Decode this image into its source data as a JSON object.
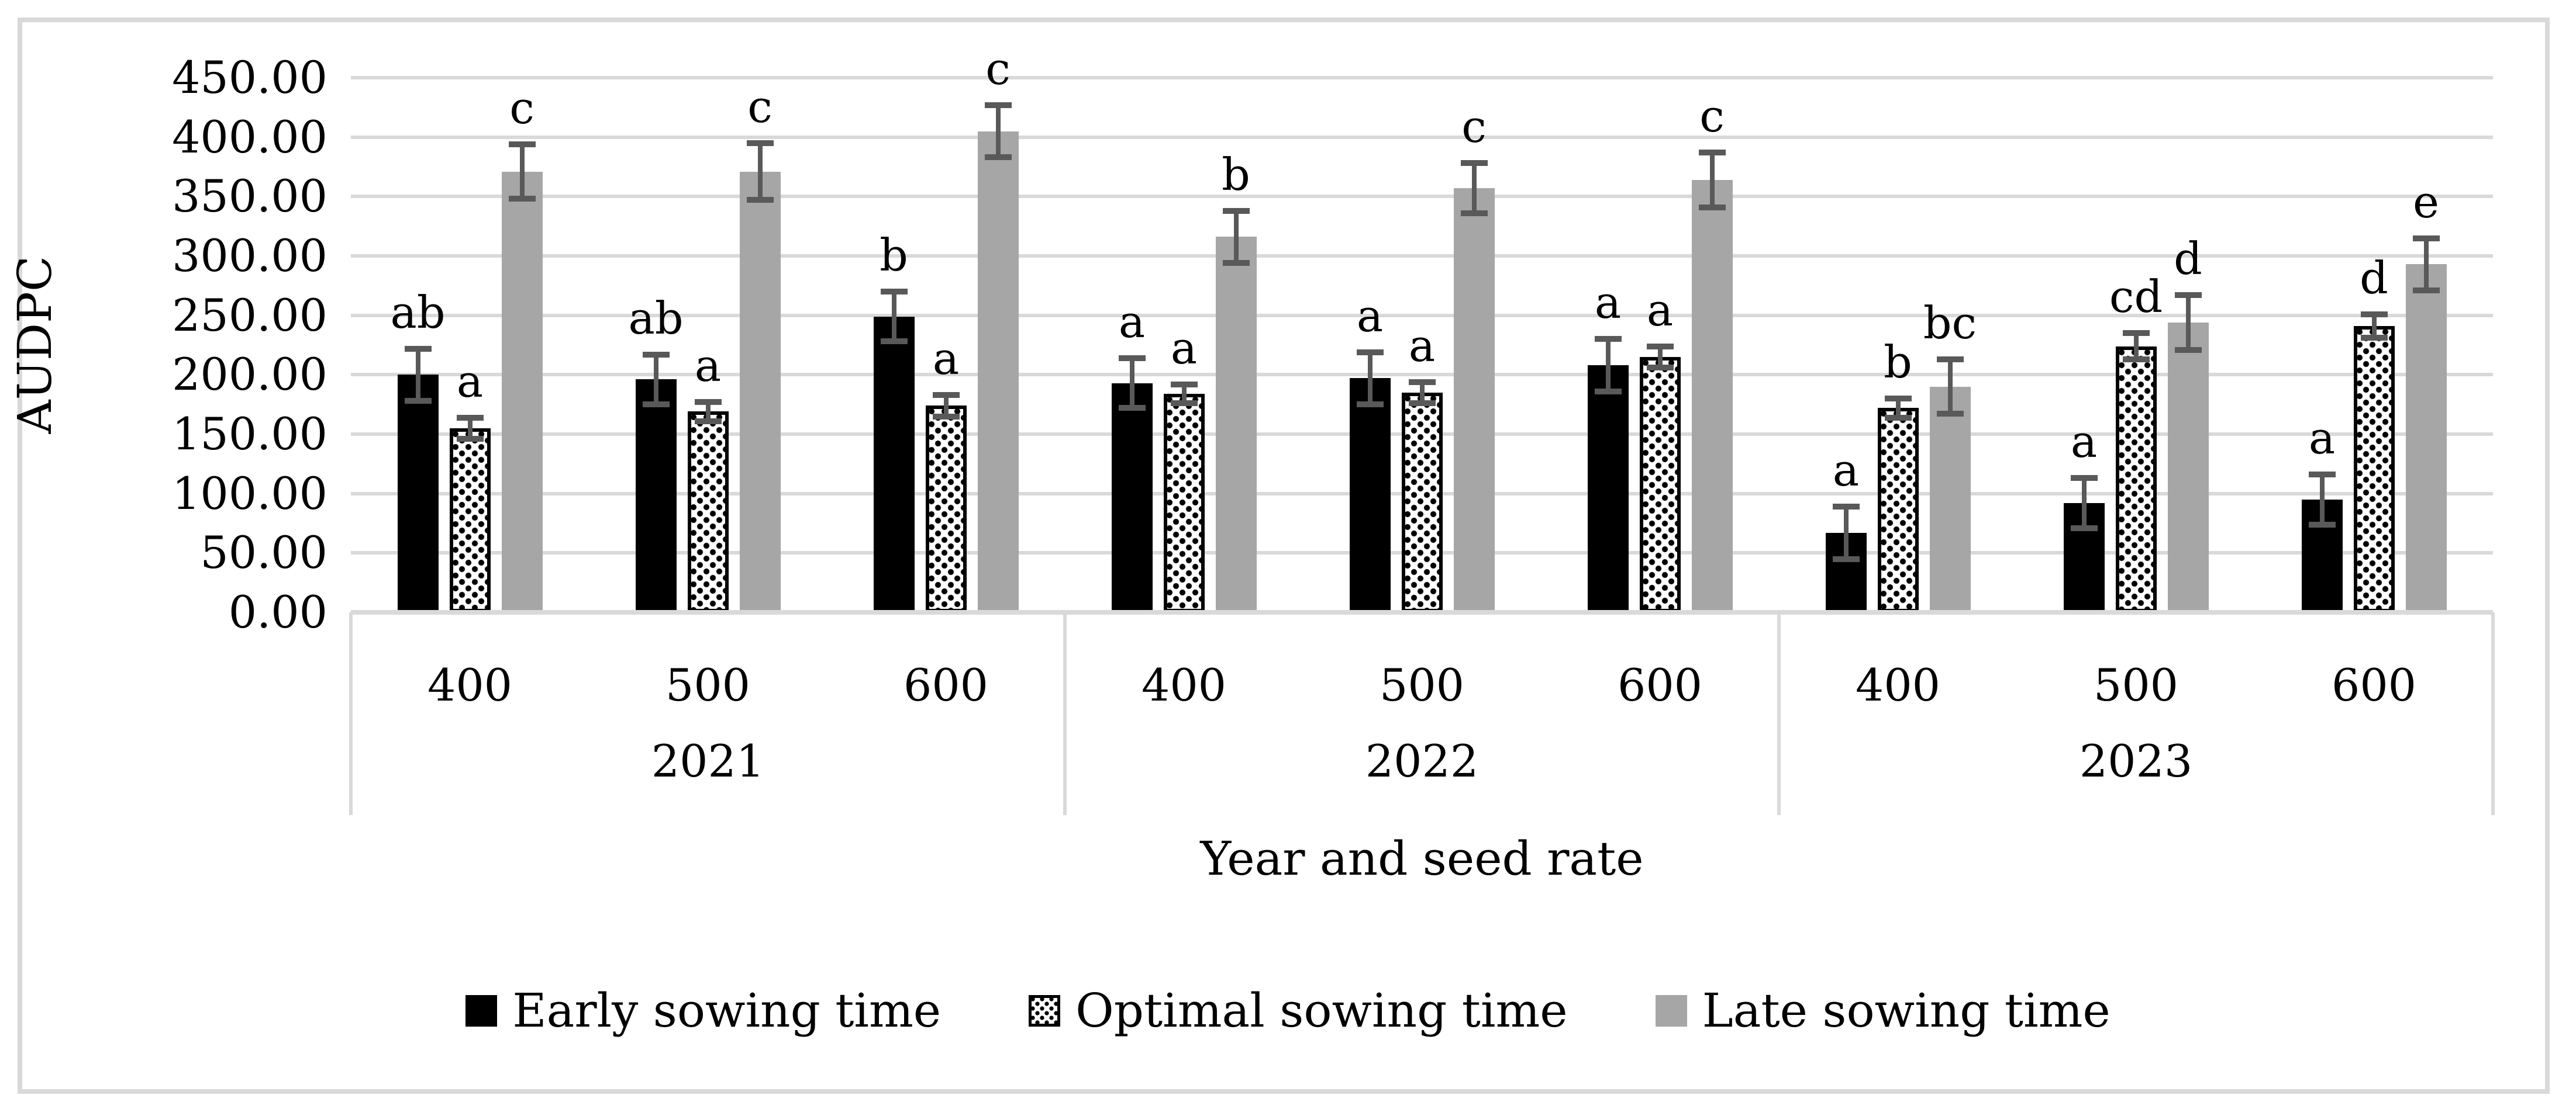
{
  "figure": {
    "y_axis": {
      "title": "AUDPC",
      "tick_labels": [
        "0.00",
        "50.00",
        "100.00",
        "150.00",
        "200.00",
        "250.00",
        "300.00",
        "350.00",
        "400.00",
        "450.00"
      ]
    },
    "x_axis": {
      "title": "Year and seed rate"
    }
  },
  "chart_data": {
    "type": "bar",
    "title": "",
    "ylabel": "AUDPC",
    "xlabel": "Year and seed rate",
    "ylim": [
      0,
      450
    ],
    "ytick_step": 50,
    "grid": true,
    "legend_position": "bottom",
    "group_labels": [
      "2021",
      "2022",
      "2023"
    ],
    "categories_per_group": [
      "400",
      "500",
      "600"
    ],
    "series": [
      {
        "name": "Early sowing time",
        "fill": "black",
        "values": [
          [
            200,
            196,
            249
          ],
          [
            193,
            197,
            208
          ],
          [
            67,
            92,
            95
          ]
        ],
        "errors": [
          [
            22,
            21,
            21
          ],
          [
            21,
            22,
            22
          ],
          [
            22,
            21,
            21
          ]
        ],
        "letters": [
          [
            "ab",
            "ab",
            "b"
          ],
          [
            "a",
            "a",
            "a"
          ],
          [
            "a",
            "a",
            "a"
          ]
        ]
      },
      {
        "name": "Optimal sowing time",
        "fill": "dotted",
        "values": [
          [
            155,
            169,
            174
          ],
          [
            184,
            185,
            215
          ],
          [
            172,
            224,
            241
          ]
        ],
        "errors": [
          [
            9,
            8,
            9
          ],
          [
            8,
            9,
            9
          ],
          [
            8,
            11,
            10
          ]
        ],
        "letters": [
          [
            "a",
            "a",
            "a"
          ],
          [
            "a",
            "a",
            "a"
          ],
          [
            "b",
            "cd",
            "d"
          ]
        ]
      },
      {
        "name": "Late sowing time",
        "fill": "gray",
        "values": [
          [
            371,
            371,
            405
          ],
          [
            316,
            357,
            364
          ],
          [
            190,
            244,
            293
          ]
        ],
        "errors": [
          [
            23,
            24,
            22
          ],
          [
            22,
            21,
            23
          ],
          [
            23,
            23,
            22
          ]
        ],
        "letters": [
          [
            "c",
            "c",
            "c"
          ],
          [
            "b",
            "c",
            "c"
          ],
          [
            "bc",
            "d",
            "e"
          ]
        ]
      }
    ]
  }
}
